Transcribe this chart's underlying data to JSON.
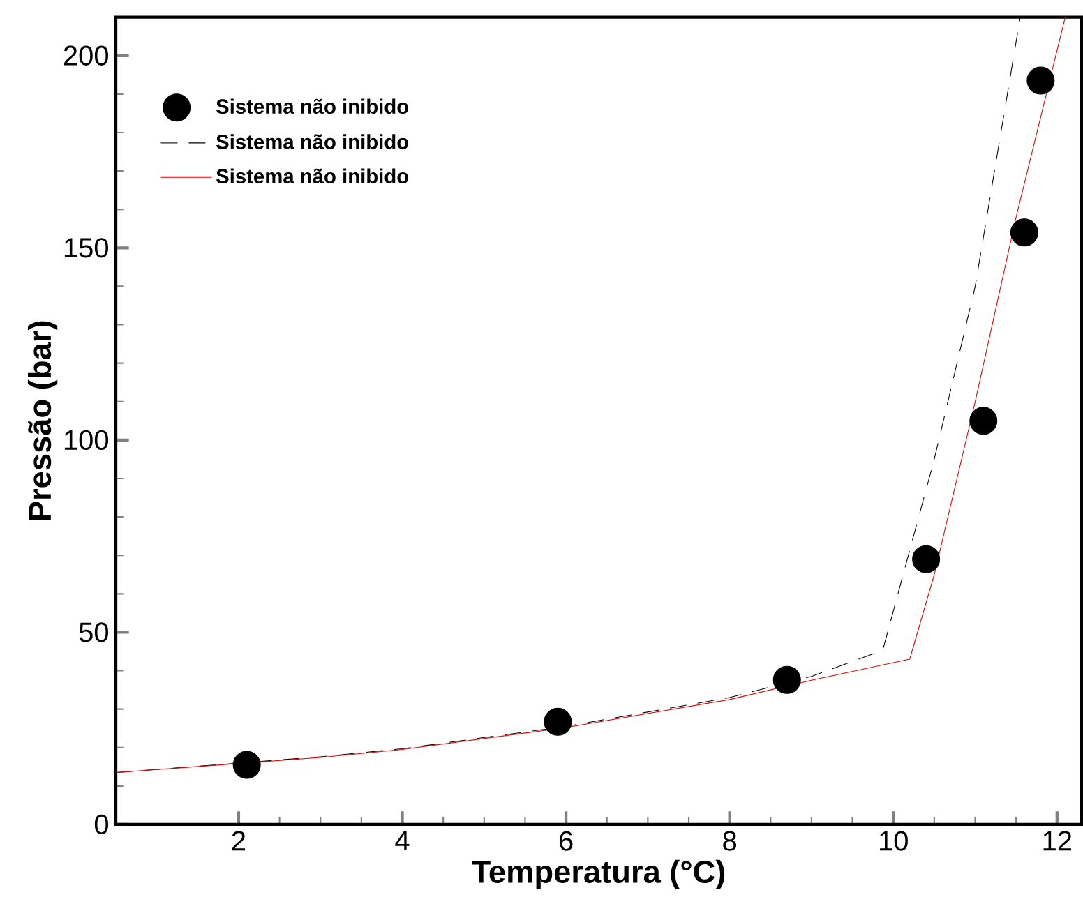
{
  "chart_data": {
    "type": "line",
    "xlabel": "Temperatura (°C)",
    "ylabel": "Pressão (bar)",
    "xlim": [
      0.5,
      12.3
    ],
    "ylim": [
      0,
      210
    ],
    "xticks": [
      2,
      4,
      6,
      8,
      10,
      12
    ],
    "yticks": [
      0,
      50,
      100,
      150,
      200
    ],
    "grid": false,
    "legend": "top left",
    "series": [
      {
        "name": "Sistema não inibido",
        "type": "scatter",
        "color": "#000000",
        "x": [
          2.1,
          5.9,
          8.7,
          10.4,
          11.1,
          11.6,
          11.8
        ],
        "values": [
          15.5,
          26.7,
          37.6,
          69,
          105,
          154,
          193.5
        ]
      },
      {
        "name": "Sistema não inibido",
        "line_style": "dashed",
        "color": "#000000",
        "x": [
          0.5,
          3,
          4,
          6,
          8,
          9,
          9.87,
          10.5,
          11,
          11.55
        ],
        "values": [
          13.5,
          17.6,
          19.7,
          25.5,
          33,
          38.5,
          45.3,
          95,
          140,
          210
        ]
      },
      {
        "name": "Sistema não inibido",
        "line_style": "solid",
        "color": "#e00000",
        "x": [
          0.5,
          3,
          4,
          6,
          8,
          9,
          10.2,
          10.5,
          11,
          11.5,
          12.1
        ],
        "values": [
          13.5,
          17.4,
          19.5,
          25.2,
          32.5,
          37.5,
          43,
          65,
          110,
          158,
          210
        ]
      }
    ]
  }
}
